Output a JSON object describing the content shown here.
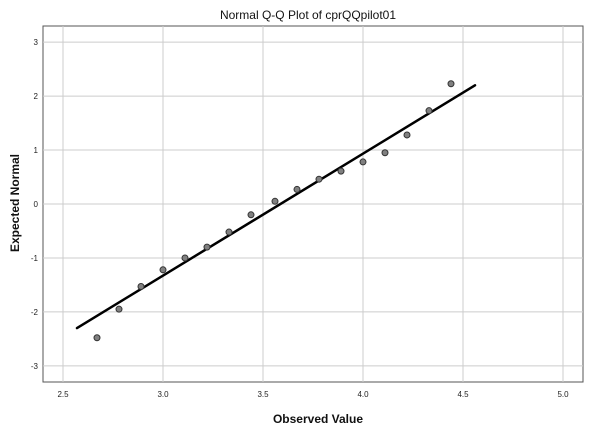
{
  "chart_data": {
    "type": "scatter",
    "title": "Normal Q-Q Plot of cprQQpilot01",
    "xlabel": "Observed Value",
    "ylabel": "Expected Normal",
    "xlim": [
      2.4,
      5.1
    ],
    "ylim": [
      -3.3,
      3.3
    ],
    "x_ticks": [
      "2.5",
      "3.0",
      "3.5",
      "4.0",
      "4.5",
      "5.0"
    ],
    "y_ticks": [
      "3",
      "2",
      "1",
      "0",
      "-1",
      "-2",
      "-3"
    ],
    "grid": true,
    "series": [
      {
        "x": [
          2.67,
          2.78,
          2.89,
          3.0,
          3.11,
          3.22,
          3.33,
          3.44,
          3.56,
          3.67,
          3.78,
          3.89,
          4.0,
          4.11,
          4.22,
          4.33,
          4.44
        ],
        "y": [
          -2.48,
          -1.95,
          -1.53,
          -1.22,
          -1.0,
          -0.8,
          -0.52,
          -0.2,
          0.05,
          0.27,
          0.46,
          0.61,
          0.78,
          0.95,
          1.28,
          1.73,
          2.23
        ]
      }
    ],
    "reference_line": {
      "x": [
        2.57,
        4.56
      ],
      "y": [
        -2.3,
        2.2
      ]
    },
    "colors": {
      "points": "#808080",
      "point_stroke": "#333333",
      "line": "#000000",
      "grid": "#cccccc",
      "axis": "#555555"
    }
  }
}
